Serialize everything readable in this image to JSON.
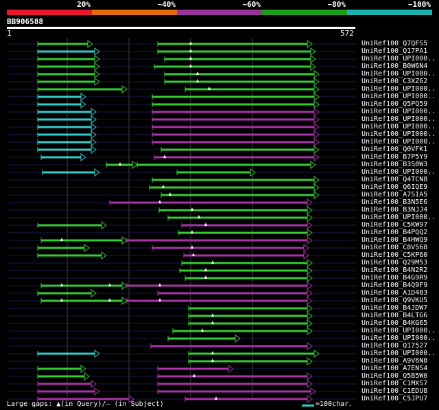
{
  "colors": {
    "background": "#000000",
    "lt20": "#e8192c",
    "p20_40": "#e36c0a",
    "p40_60": "#993399",
    "p60_80": "#1a9e1a",
    "p80_100": "#1ab3b3",
    "hit_cyan": "#33cccc",
    "hit_green": "#33cc33",
    "hit_purple": "#aa33aa",
    "gridline": "#444444"
  },
  "legend": {
    "labels": [
      "20%",
      "~40%",
      "~60%",
      "~80%",
      "~100%"
    ]
  },
  "query": {
    "name": "BB906588",
    "length": 572,
    "start_label": "1",
    "end_label": "572"
  },
  "hits": [
    {
      "name": "UniRef100_Q7QFS5",
      "segs": [
        [
          55,
          135,
          "g"
        ],
        [
          230,
          455,
          "g"
        ]
      ],
      "marks": [
        278
      ]
    },
    {
      "name": "UniRef100_Q17PA1",
      "segs": [
        [
          55,
          145,
          "c"
        ],
        [
          230,
          460,
          "g"
        ]
      ],
      "marks": [
        278
      ]
    },
    {
      "name": "UniRef100_UPI000..",
      "segs": [
        [
          55,
          145,
          "g"
        ],
        [
          240,
          460,
          "g"
        ]
      ],
      "marks": [
        278
      ]
    },
    {
      "name": "UniRef100_B0W6N4",
      "segs": [
        [
          55,
          145,
          "g"
        ],
        [
          225,
          460,
          "g"
        ]
      ],
      "marks": [
        278
      ]
    },
    {
      "name": "UniRef100_UPI000..",
      "segs": [
        [
          55,
          145,
          "g"
        ],
        [
          240,
          465,
          "g"
        ]
      ],
      "marks": [
        288
      ]
    },
    {
      "name": "UniRef100_C3XZ62",
      "segs": [
        [
          55,
          145,
          "g"
        ],
        [
          240,
          465,
          "g"
        ]
      ],
      "marks": [
        288
      ]
    },
    {
      "name": "UniRef100_UPI000..",
      "segs": [
        [
          55,
          185,
          "g"
        ],
        [
          270,
          465,
          "g"
        ]
      ],
      "marks": [
        305
      ]
    },
    {
      "name": "UniRef100_UPI000..",
      "segs": [
        [
          55,
          125,
          "c"
        ],
        [
          222,
          465,
          "g"
        ]
      ],
      "marks": []
    },
    {
      "name": "UniRef100_Q5PQ59",
      "segs": [
        [
          55,
          125,
          "c"
        ],
        [
          222,
          465,
          "g"
        ]
      ],
      "marks": []
    },
    {
      "name": "UniRef100_UPI000..",
      "segs": [
        [
          55,
          140,
          "c"
        ],
        [
          222,
          465,
          "p"
        ]
      ],
      "marks": []
    },
    {
      "name": "UniRef100_UPI000..",
      "segs": [
        [
          55,
          140,
          "c"
        ],
        [
          222,
          465,
          "p"
        ]
      ],
      "marks": []
    },
    {
      "name": "UniRef100_UPI000..",
      "segs": [
        [
          55,
          140,
          "c"
        ],
        [
          222,
          465,
          "p"
        ]
      ],
      "marks": []
    },
    {
      "name": "UniRef100_UPI000..",
      "segs": [
        [
          55,
          140,
          "c"
        ],
        [
          222,
          465,
          "p"
        ]
      ],
      "marks": []
    },
    {
      "name": "UniRef100_UPI000..",
      "segs": [
        [
          55,
          140,
          "c"
        ],
        [
          222,
          465,
          "p"
        ]
      ],
      "marks": []
    },
    {
      "name": "UniRef100_Q0VFK1",
      "segs": [
        [
          55,
          140,
          "c"
        ],
        [
          235,
          465,
          "g"
        ]
      ],
      "marks": []
    },
    {
      "name": "UniRef100_B7P5Y9",
      "segs": [
        [
          60,
          125,
          "c"
        ],
        [
          225,
          465,
          "p"
        ]
      ],
      "marks": [
        240
      ]
    },
    {
      "name": "UniRef100_B3S0W3",
      "segs": [
        [
          155,
          200,
          "g"
        ],
        [
          200,
          460,
          "g"
        ]
      ],
      "marks": [
        175
      ]
    },
    {
      "name": "UniRef100_UPI000..",
      "segs": [
        [
          62,
          145,
          "c"
        ],
        [
          258,
          372,
          "g"
        ]
      ],
      "marks": []
    },
    {
      "name": "UniRef100_Q4TCN8",
      "segs": [
        [
          222,
          465,
          "g"
        ]
      ],
      "marks": []
    },
    {
      "name": "UniRef100_Q6IQE9",
      "segs": [
        [
          218,
          465,
          "g"
        ]
      ],
      "marks": [
        238
      ]
    },
    {
      "name": "UniRef100_A7SIA5",
      "segs": [
        [
          235,
          465,
          "g"
        ]
      ],
      "marks": [
        248
      ]
    },
    {
      "name": "UniRef100_B3N5E6",
      "segs": [
        [
          160,
          455,
          "p"
        ]
      ],
      "marks": [
        233
      ]
    },
    {
      "name": "UniRef100_B3NJJ4",
      "segs": [
        [
          232,
          455,
          "g"
        ]
      ],
      "marks": [
        280
      ]
    },
    {
      "name": "UniRef100_UPI000..",
      "segs": [
        [
          245,
          455,
          "g"
        ]
      ],
      "marks": [
        290
      ]
    },
    {
      "name": "UniRef100_C5KW97",
      "segs": [
        [
          55,
          155,
          "g"
        ],
        [
          265,
          455,
          "p"
        ]
      ],
      "marks": [
        300
      ]
    },
    {
      "name": "UniRef100_B4PQQ2",
      "segs": [
        [
          260,
          455,
          "g"
        ]
      ],
      "marks": [
        280
      ]
    },
    {
      "name": "UniRef100_B4HWQ9",
      "segs": [
        [
          60,
          185,
          "g"
        ],
        [
          185,
          455,
          "p"
        ]
      ],
      "marks": [
        90
      ]
    },
    {
      "name": "UniRef100_C8V568",
      "segs": [
        [
          55,
          130,
          "g"
        ],
        [
          222,
          450,
          "p"
        ]
      ],
      "marks": [
        280
      ]
    },
    {
      "name": "UniRef100_C5KP60",
      "segs": [
        [
          55,
          155,
          "g"
        ],
        [
          268,
          450,
          "p"
        ]
      ],
      "marks": [
        282
      ]
    },
    {
      "name": "UniRef100_Q29M53",
      "segs": [
        [
          265,
          455,
          "g"
        ]
      ],
      "marks": [
        310
      ]
    },
    {
      "name": "UniRef100_B4N2R2",
      "segs": [
        [
          262,
          455,
          "g"
        ]
      ],
      "marks": [
        300
      ]
    },
    {
      "name": "UniRef100_B4G9R9",
      "segs": [
        [
          270,
          455,
          "g"
        ]
      ],
      "marks": [
        300
      ]
    },
    {
      "name": "UniRef100_B4Q9F9",
      "segs": [
        [
          60,
          185,
          "g"
        ],
        [
          185,
          455,
          "p"
        ]
      ],
      "marks": [
        90,
        160,
        233
      ]
    },
    {
      "name": "UniRef100_A1D483",
      "segs": [
        [
          55,
          140,
          "g"
        ],
        [
          230,
          455,
          "p"
        ]
      ],
      "marks": []
    },
    {
      "name": "UniRef100_Q9VKU5",
      "segs": [
        [
          60,
          185,
          "g"
        ],
        [
          185,
          455,
          "p"
        ]
      ],
      "marks": [
        90,
        160,
        233
      ]
    },
    {
      "name": "UniRef100_B4JDW7",
      "segs": [
        [
          275,
          455,
          "g"
        ]
      ],
      "marks": []
    },
    {
      "name": "UniRef100_B4LTG6",
      "segs": [
        [
          275,
          455,
          "g"
        ]
      ],
      "marks": [
        310
      ]
    },
    {
      "name": "UniRef100_B4KG65",
      "segs": [
        [
          275,
          455,
          "g"
        ]
      ],
      "marks": [
        310
      ]
    },
    {
      "name": "UniRef100_UPI000..",
      "segs": [
        [
          252,
          455,
          "g"
        ]
      ],
      "marks": [
        295
      ]
    },
    {
      "name": "UniRef100_UPI000..",
      "segs": [
        [
          245,
          350,
          "g"
        ]
      ],
      "marks": []
    },
    {
      "name": "UniRef100_Q17527",
      "segs": [
        [
          220,
          455,
          "p"
        ]
      ],
      "marks": []
    },
    {
      "name": "UniRef100_UPI000..",
      "segs": [
        [
          55,
          145,
          "c"
        ],
        [
          275,
          465,
          "g"
        ]
      ],
      "marks": [
        310
      ]
    },
    {
      "name": "UniRef100_A9V6N8",
      "segs": [
        [
          275,
          455,
          "g"
        ]
      ],
      "marks": [
        310
      ]
    },
    {
      "name": "UniRef100_A7ENS4",
      "segs": [
        [
          55,
          125,
          "g"
        ],
        [
          230,
          340,
          "p"
        ]
      ],
      "marks": []
    },
    {
      "name": "UniRef100_Q5B5W0",
      "segs": [
        [
          55,
          130,
          "g"
        ],
        [
          230,
          455,
          "p"
        ]
      ],
      "marks": [
        283
      ]
    },
    {
      "name": "UniRef100_C1MXS7",
      "segs": [
        [
          55,
          140,
          "p"
        ],
        [
          230,
          455,
          "p"
        ]
      ],
      "marks": []
    },
    {
      "name": "UniRef100_C1EDU8",
      "segs": [
        [
          55,
          145,
          "p"
        ],
        [
          230,
          460,
          "p"
        ]
      ],
      "marks": []
    },
    {
      "name": "UniRef100_C5JPU7",
      "segs": [
        [
          55,
          195,
          "p"
        ],
        [
          270,
          455,
          "p"
        ]
      ],
      "marks": [
        315
      ]
    }
  ],
  "footer": {
    "left_text": "Large gaps: ▲(in Query)/– (in Subject)",
    "right_text": "=100char."
  }
}
